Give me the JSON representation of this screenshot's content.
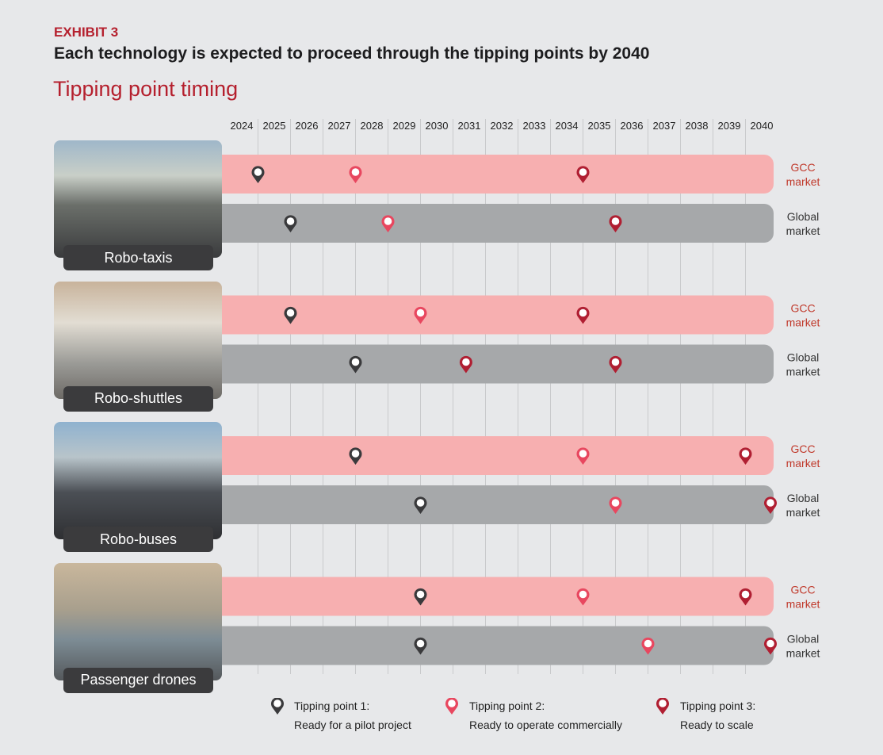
{
  "header": {
    "exhibit": "EXHIBIT 3",
    "title": "Each technology is expected to proceed through the tipping points by 2040"
  },
  "chart_data": {
    "type": "timeline",
    "title": "Tipping point timing",
    "years": [
      "2024",
      "2025",
      "2026",
      "2027",
      "2028",
      "2029",
      "2030",
      "2031",
      "2032",
      "2033",
      "2034",
      "2035",
      "2036",
      "2037",
      "2038",
      "2039",
      "2040"
    ],
    "xlim": [
      2024,
      2040
    ],
    "grid": true,
    "colors": {
      "gcc_band": "#f7afb0",
      "global_band": "#a6a8aa",
      "tp1": "#3a3a3c",
      "tp2": "#e8475f",
      "tp3": "#b01f32",
      "gcc_text": "#c0392b",
      "global_text": "#333333"
    },
    "markets": {
      "gcc": "GCC\nmarket",
      "global": "Global\nmarket"
    },
    "technologies": [
      {
        "name": "Robo-taxis",
        "gcc": [
          {
            "tp": 1,
            "year": 2024
          },
          {
            "tp": 2,
            "year": 2027
          },
          {
            "tp": 3,
            "year": 2034
          }
        ],
        "global": [
          {
            "tp": 1,
            "year": 2025
          },
          {
            "tp": 2,
            "year": 2028
          },
          {
            "tp": 3,
            "year": 2035
          }
        ]
      },
      {
        "name": "Robo-shuttles",
        "gcc": [
          {
            "tp": 1,
            "year": 2025
          },
          {
            "tp": 2,
            "year": 2029
          },
          {
            "tp": 3,
            "year": 2034
          }
        ],
        "global": [
          {
            "tp": 1,
            "year": 2027
          },
          {
            "tp": 3,
            "year": 2030.4
          },
          {
            "tp": 3,
            "year": 2035
          }
        ]
      },
      {
        "name": "Robo-buses",
        "gcc": [
          {
            "tp": 1,
            "year": 2027
          },
          {
            "tp": 2,
            "year": 2034
          },
          {
            "tp": 3,
            "year": 2039
          }
        ],
        "global": [
          {
            "tp": 1,
            "year": 2029
          },
          {
            "tp": 2,
            "year": 2035
          },
          {
            "tp": 3,
            "year": 2040
          }
        ]
      },
      {
        "name": "Passenger drones",
        "gcc": [
          {
            "tp": 1,
            "year": 2029
          },
          {
            "tp": 2,
            "year": 2034
          },
          {
            "tp": 3,
            "year": 2039
          }
        ],
        "global": [
          {
            "tp": 1,
            "year": 2029
          },
          {
            "tp": 2,
            "year": 2036
          },
          {
            "tp": 3,
            "year": 2040
          }
        ]
      }
    ],
    "legend": [
      {
        "tp": 1,
        "title": "Tipping point 1:",
        "desc": "Ready for a pilot project"
      },
      {
        "tp": 2,
        "title": "Tipping point 2:",
        "desc": "Ready to operate commercially"
      },
      {
        "tp": 3,
        "title": "Tipping point 3:",
        "desc": "Ready to scale"
      }
    ]
  }
}
